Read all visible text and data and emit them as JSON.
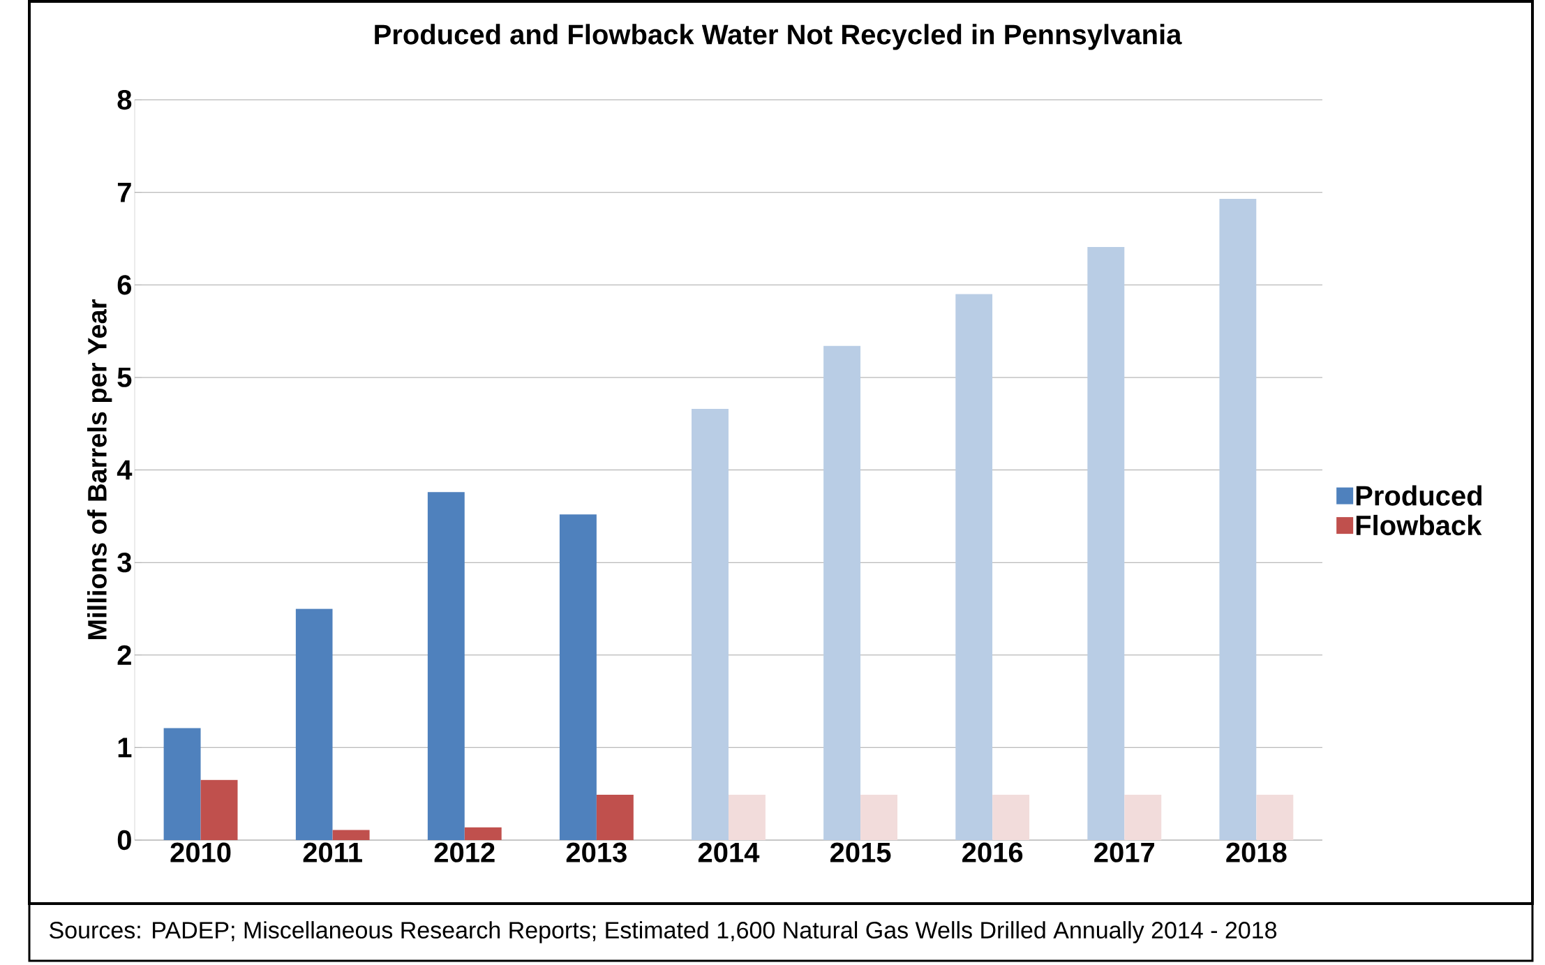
{
  "chart_data": {
    "type": "bar",
    "title": "Produced and Flowback Water Not Recycled in Pennsylvania",
    "ylabel": "Millions of Barrels per Year",
    "categories": [
      "2010",
      "2011",
      "2012",
      "2013",
      "2014",
      "2015",
      "2016",
      "2017",
      "2018"
    ],
    "series": [
      {
        "name": "Produced",
        "color": "#4f81bd",
        "colors": [
          "#4f81bd",
          "#4f81bd",
          "#4f81bd",
          "#4f81bd",
          "#b9cde5",
          "#b9cde5",
          "#b9cde5",
          "#b9cde5",
          "#b9cde5"
        ],
        "values": [
          1.21,
          2.5,
          3.76,
          3.52,
          4.66,
          5.34,
          5.9,
          6.41,
          6.93
        ]
      },
      {
        "name": "Flowback",
        "color": "#c0504d",
        "colors": [
          "#c0504d",
          "#c0504d",
          "#c0504d",
          "#c0504d",
          "#f2dcdb",
          "#f2dcdb",
          "#f2dcdb",
          "#f2dcdb",
          "#f2dcdb"
        ],
        "values": [
          0.65,
          0.11,
          0.14,
          0.49,
          0.49,
          0.49,
          0.49,
          0.49,
          0.49
        ]
      }
    ],
    "ylim": [
      0,
      8
    ],
    "yticks": [
      0,
      1,
      2,
      3,
      4,
      5,
      6,
      7,
      8
    ],
    "grid": "y",
    "legend": "right",
    "annotations": [
      "Sources: PADEP; Miscellaneous Research Reports; Estimated 1,600 Natural Gas Wells Drilled Annually 2014 - 2018"
    ]
  }
}
